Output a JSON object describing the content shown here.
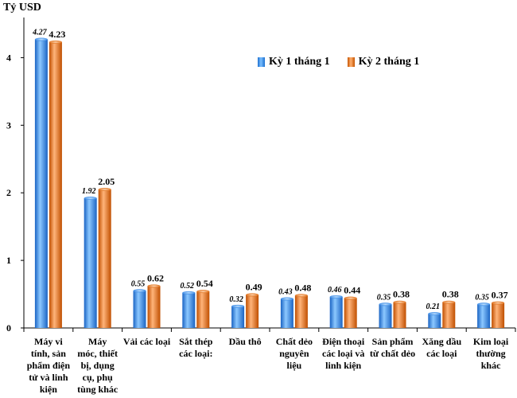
{
  "chart_data": {
    "type": "bar",
    "title": "",
    "ylabel": "Tỷ USD",
    "xlabel": "",
    "ylim": [
      0,
      4.5
    ],
    "yticks": [
      0,
      1,
      2,
      3,
      4
    ],
    "legend_position": "top-right",
    "categories": [
      "Máy vi tính, sản phẩm điện tử và linh kiện",
      "Máy móc, thiết bị, dụng cụ, phụ tùng khác",
      "Vải các loại",
      "Sắt thép các loại:",
      "Dầu thô",
      "Chất dẻo nguyên liệu",
      "Điện thoại các loại và linh kiện",
      "Sản phẩm từ chất dẻo",
      "Xăng dầu các loại",
      "Kim loại thường khác"
    ],
    "series": [
      {
        "name": "Kỳ 1 tháng 1",
        "color": "#2e86e8",
        "values": [
          4.27,
          1.92,
          0.55,
          0.52,
          0.32,
          0.43,
          0.46,
          0.35,
          0.21,
          0.35
        ],
        "labels": [
          "4.27",
          "1.92",
          "0.55",
          "0.52",
          "0.32",
          "0.43",
          "0.46",
          "0.35",
          "0.21",
          "0.35"
        ]
      },
      {
        "name": "Kỳ 2 tháng 1",
        "color": "#f07a1e",
        "values": [
          4.23,
          2.05,
          0.62,
          0.54,
          0.49,
          0.48,
          0.44,
          0.38,
          0.38,
          0.37
        ],
        "labels": [
          "4.23",
          "2.05",
          "0.62",
          "0.54",
          "0.49",
          "0.48",
          "0.44",
          "0.38",
          "0.38",
          "0.37"
        ]
      }
    ]
  },
  "category_lines": [
    [
      "Máy vi",
      "tính, sản",
      "phẩm điện",
      "tử và linh",
      "kiện"
    ],
    [
      "Máy",
      "móc, thiết",
      "bị, dụng",
      "cụ, phụ",
      "tùng khác"
    ],
    [
      "Vải các loại"
    ],
    [
      "Sắt thép",
      "các loại:"
    ],
    [
      "Dầu thô"
    ],
    [
      "Chất dẻo",
      "nguyên",
      "liệu"
    ],
    [
      "Điện thoại",
      "các loại và",
      "linh kiện"
    ],
    [
      "Sản phẩm",
      "từ chất dẻo"
    ],
    [
      "Xăng dầu",
      "các loại"
    ],
    [
      "Kim loại",
      "thường",
      "khác"
    ]
  ]
}
